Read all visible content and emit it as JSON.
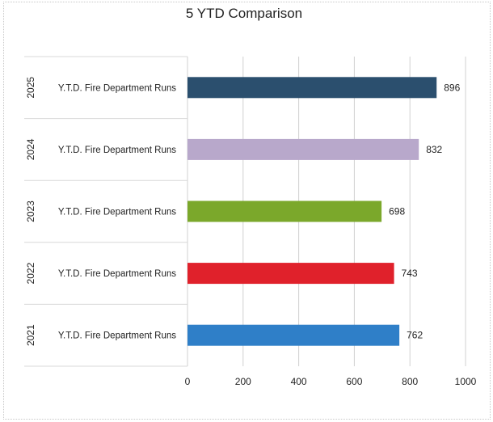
{
  "chart_data": {
    "type": "bar",
    "orientation": "horizontal",
    "title": "5 YTD Comparison",
    "categories": [
      {
        "group": "2025",
        "label": "Y.T.D. Fire Department Runs"
      },
      {
        "group": "2024",
        "label": "Y.T.D. Fire Department Runs"
      },
      {
        "group": "2023",
        "label": "Y.T.D. Fire Department Runs"
      },
      {
        "group": "2022",
        "label": "Y.T.D. Fire Department Runs"
      },
      {
        "group": "2021",
        "label": "Y.T.D. Fire Department Runs"
      }
    ],
    "values": [
      896,
      832,
      698,
      743,
      762
    ],
    "data_labels": [
      "896",
      "832",
      "698",
      "743",
      "762"
    ],
    "colors": [
      "#2b4f6e",
      "#b8a8cb",
      "#7ba82b",
      "#e0212b",
      "#2f7fc8"
    ],
    "xlim": [
      0,
      1000
    ],
    "xticks": [
      0,
      200,
      400,
      600,
      800,
      1000
    ],
    "xtick_labels": [
      "0",
      "200",
      "400",
      "600",
      "800",
      "1000"
    ],
    "grid": true,
    "legend": "none",
    "xlabel": "",
    "ylabel": ""
  }
}
